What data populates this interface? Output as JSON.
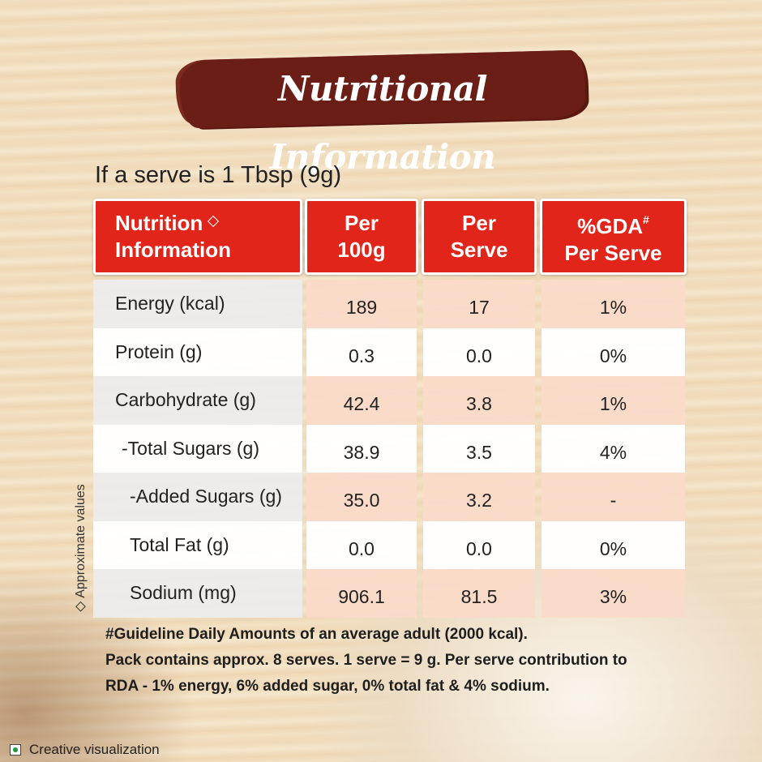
{
  "title": "Nutritional Information",
  "serve_note": "If a serve is 1 Tbsp (9g)",
  "table": {
    "headers": [
      {
        "lines": [
          "Nutrition",
          "Information"
        ]
      },
      {
        "lines": [
          "Per",
          "100g"
        ]
      },
      {
        "lines": [
          "Per",
          "Serve"
        ]
      },
      {
        "lines": [
          "%GDA",
          "Per Serve"
        ],
        "sup": "#"
      }
    ],
    "rows": [
      [
        "Energy (kcal)",
        "189",
        "17",
        "1%"
      ],
      [
        "Protein (g)",
        "0.3",
        "0.0",
        "0%"
      ],
      [
        "Carbohydrate (g)",
        "42.4",
        "3.8",
        "1%"
      ],
      [
        "-Total Sugars (g)",
        "38.9",
        "3.5",
        "4%"
      ],
      [
        "-Added Sugars (g)",
        "35.0",
        "3.2",
        "-"
      ],
      [
        "Total Fat (g)",
        "0.0",
        "0.0",
        "0%"
      ],
      [
        "Sodium (mg)",
        "906.1",
        "81.5",
        "3%"
      ]
    ]
  },
  "side_note": "Approximate values",
  "footnotes": [
    "#Guideline Daily Amounts of an average adult (2000 kcal).",
    "Pack contains approx. 8 serves. 1 serve = 9 g. Per serve contribution to",
    "RDA - 1% energy, 6% added sugar, 0% total fat & 4% sodium."
  ],
  "disclaimer": "Creative visualization"
}
